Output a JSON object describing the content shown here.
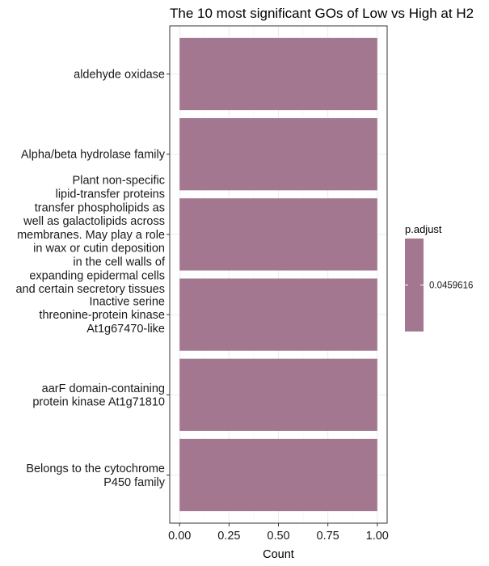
{
  "chart_data": {
    "type": "bar",
    "orientation": "horizontal",
    "title": "The 10 most significant GOs of Low vs High at H2",
    "xlabel": "Count",
    "ylabel": "",
    "xlim": [
      0,
      1
    ],
    "x_ticks": [
      "0.00",
      "0.25",
      "0.50",
      "0.75",
      "1.00"
    ],
    "grid": true,
    "categories": [
      [
        "aldehyde oxidase"
      ],
      [
        "Alpha/beta hydrolase family"
      ],
      [
        "Plant non-specific",
        "lipid-transfer proteins",
        "transfer phospholipids as",
        "well as galactolipids across",
        "membranes. May play a role",
        "in wax or cutin deposition",
        "in the cell walls of",
        "expanding epidermal cells",
        "and certain secretory tissues"
      ],
      [
        "Inactive serine",
        "threonine-protein kinase",
        "At1g67470-like"
      ],
      [
        "aarF domain-containing",
        "protein kinase At1g71810"
      ],
      [
        "Belongs to the cytochrome",
        "P450 family"
      ]
    ],
    "values": [
      1,
      1,
      1,
      1,
      1,
      1
    ],
    "p_adjust": [
      0.0459616,
      0.0459616,
      0.0459616,
      0.0459616,
      0.0459616,
      0.0459616
    ],
    "bar_color": "#a3778f",
    "legend": {
      "title": "p.adjust",
      "labels": [
        "0.0459616"
      ],
      "placement": "right"
    }
  }
}
